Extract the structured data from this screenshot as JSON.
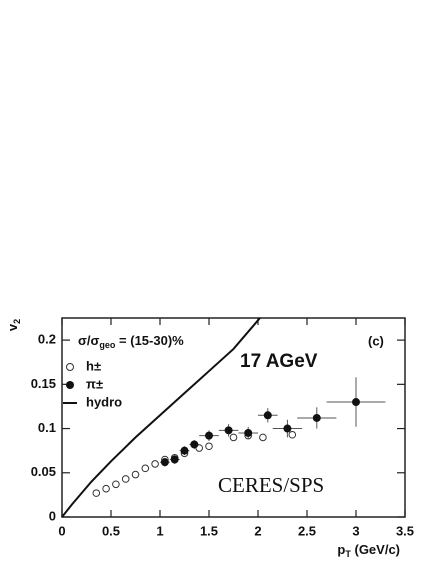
{
  "chart_data": {
    "type": "scatter",
    "x_label": [
      "p",
      "T",
      " (GeV/c)"
    ],
    "y_label": [
      "v",
      "2"
    ],
    "legend_title": [
      "σ/σ",
      "geo",
      " = (15-30)%"
    ],
    "annotations": [
      "17 AGeV",
      "(c)",
      "CERES/SPS"
    ],
    "xlim": [
      0,
      3.5
    ],
    "ylim": [
      0,
      0.225
    ],
    "xticks": [
      0,
      0.5,
      1,
      1.5,
      2,
      2.5,
      3,
      3.5
    ],
    "yticks": [
      0,
      0.05,
      0.1,
      0.15,
      0.2
    ],
    "series": [
      {
        "name": "h±",
        "marker": "open",
        "color": "#333333",
        "x": [
          0.35,
          0.45,
          0.55,
          0.65,
          0.75,
          0.85,
          0.95,
          1.05,
          1.15,
          1.25,
          1.4,
          1.5,
          1.75,
          1.9,
          2.05,
          2.35
        ],
        "values": [
          0.027,
          0.032,
          0.037,
          0.043,
          0.048,
          0.055,
          0.06,
          0.065,
          0.067,
          0.072,
          0.078,
          0.08,
          0.09,
          0.092,
          0.09,
          0.093
        ]
      },
      {
        "name": "π±",
        "marker": "filled",
        "color": "#111111",
        "x": [
          1.05,
          1.15,
          1.25,
          1.35,
          1.5,
          1.7,
          1.9,
          2.1,
          2.3,
          2.6,
          3.0
        ],
        "values": [
          0.062,
          0.065,
          0.075,
          0.082,
          0.092,
          0.098,
          0.095,
          0.115,
          0.1,
          0.112,
          0.13
        ],
        "xerr": [
          0.05,
          0.05,
          0.05,
          0.05,
          0.1,
          0.1,
          0.1,
          0.1,
          0.15,
          0.2,
          0.3
        ],
        "yerr": [
          0.005,
          0.005,
          0.005,
          0.005,
          0.006,
          0.007,
          0.007,
          0.008,
          0.01,
          0.012,
          0.028
        ]
      },
      {
        "name": "hydro",
        "marker": "line",
        "color": "#111111",
        "x": [
          0,
          0.1,
          0.3,
          0.5,
          0.75,
          1.0,
          1.25,
          1.5,
          1.75,
          2.02
        ],
        "values": [
          0,
          0.014,
          0.04,
          0.063,
          0.09,
          0.115,
          0.14,
          0.165,
          0.19,
          0.225
        ]
      }
    ]
  }
}
